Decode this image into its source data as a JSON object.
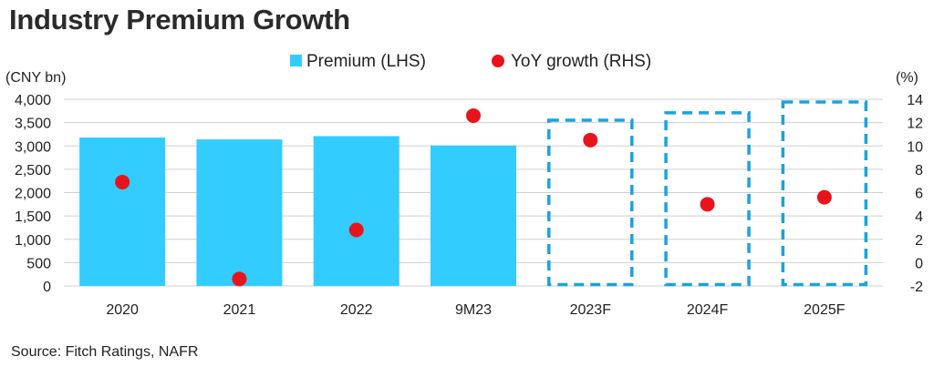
{
  "title": "Industry Premium Growth",
  "source": "Source: Fitch Ratings, NAFR",
  "colors": {
    "bar": "#33ccff",
    "forecast_dash": "#1aa3dd",
    "dot": "#e8141c",
    "grid": "#cfcfcf"
  },
  "chart_data": {
    "type": "bar",
    "categories": [
      "2020",
      "2021",
      "2022",
      "9M23",
      "2023F",
      "2024F",
      "2025F"
    ],
    "series": [
      {
        "name": "Premium (LHS)",
        "type": "bar",
        "axis": "left",
        "values": [
          3180,
          3140,
          3210,
          3010,
          3580,
          3740,
          3970
        ],
        "forecast": [
          false,
          false,
          false,
          false,
          true,
          true,
          true
        ]
      },
      {
        "name": "YoY growth (RHS)",
        "type": "scatter",
        "axis": "right",
        "values": [
          6.9,
          -1.4,
          2.8,
          12.6,
          10.5,
          5.0,
          5.6
        ]
      }
    ],
    "left_axis": {
      "label": "(CNY bn)",
      "ylim": [
        0,
        4000
      ],
      "ticks": [
        0,
        500,
        1000,
        1500,
        2000,
        2500,
        3000,
        3500,
        4000
      ],
      "tick_labels": [
        "0",
        "500",
        "1,000",
        "1,500",
        "2,000",
        "2,500",
        "3,000",
        "3,500",
        "4,000"
      ]
    },
    "right_axis": {
      "label": "(%)",
      "ylim": [
        -2,
        14
      ],
      "ticks": [
        -2,
        0,
        2,
        4,
        6,
        8,
        10,
        12,
        14
      ],
      "tick_labels": [
        "-2",
        "0",
        "2",
        "4",
        "6",
        "8",
        "10",
        "12",
        "14"
      ]
    },
    "legend_position": "top-center",
    "grid": true
  }
}
